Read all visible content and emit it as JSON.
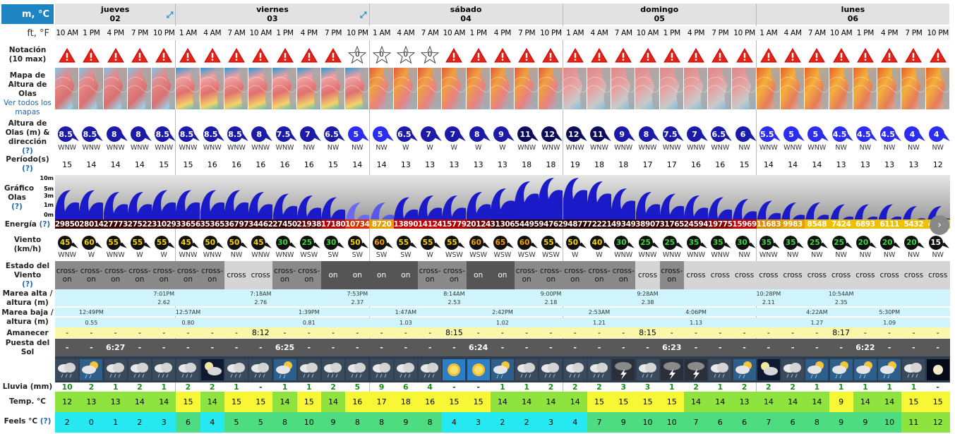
{
  "units": {
    "metric": "m, °C",
    "imperial": "ft, °F"
  },
  "labels": {
    "rating": "Notación (10 max)",
    "map_line1": "Mapa de Altura de Olas",
    "map_link": "Ver todos los mapas",
    "height": "Altura de Olas (m) & dirección",
    "help": "(?)",
    "period": "Período(s)",
    "graph": "Gráfico Olas",
    "graph_ticks": [
      "10m",
      "5m",
      "3m",
      "1m",
      "0m"
    ],
    "energy": "Energía",
    "wind": "Viento (km/h)",
    "wind_state": "Estado del Viento",
    "tide_high": "Marea alta / altura (m)",
    "tide_low": "Marea baja / altura (m)",
    "sunrise": "Amanecer",
    "sunset": "Puesta del Sol",
    "rain": "Lluvia (mm)",
    "temp": "Temp. °C",
    "feels": "Feels °C"
  },
  "days": [
    {
      "name": "jueves",
      "num": "02",
      "cols": 5
    },
    {
      "name": "viernes",
      "num": "03",
      "cols": 8
    },
    {
      "name": "sábado",
      "num": "04",
      "cols": 8
    },
    {
      "name": "domingo",
      "num": "05",
      "cols": 8
    },
    {
      "name": "lunes",
      "num": "06",
      "cols": 8
    }
  ],
  "hours": [
    "10 AM",
    "1 PM",
    "4 PM",
    "7 PM",
    "10 PM",
    "1 AM",
    "4 AM",
    "7 AM",
    "10 AM",
    "1 PM",
    "4 PM",
    "7 PM",
    "10 PM",
    "1 AM",
    "4 AM",
    "7 AM",
    "10 AM",
    "1 PM",
    "4 PM",
    "7 PM",
    "10 PM",
    "1 AM",
    "4 AM",
    "7 AM",
    "10 AM",
    "1 PM",
    "4 PM",
    "7 PM",
    "10 PM",
    "1 AM",
    "4 AM",
    "7 AM",
    "10 AM",
    "1 PM",
    "4 PM",
    "7 PM",
    "10 PM"
  ],
  "rating": [
    "w",
    "w",
    "w",
    "w",
    "w",
    "w",
    "w",
    "w",
    "w",
    "w",
    "w",
    "w",
    "0",
    "0",
    "0",
    "0",
    "w",
    "w",
    "w",
    "w",
    "w",
    "w",
    "w",
    "w",
    "w",
    "w",
    "w",
    "w",
    "w",
    "w",
    "w",
    "w",
    "w",
    "w",
    "w",
    "w",
    "w"
  ],
  "wave_height": [
    "8.5",
    "8.5",
    "8",
    "8",
    "8.5",
    "8.5",
    "8.5",
    "8.5",
    "8",
    "7.5",
    "7",
    "6.5",
    "5",
    "5",
    "6.5",
    "7",
    "7",
    "8",
    "9",
    "11",
    "12",
    "12",
    "11",
    "9",
    "8",
    "7.5",
    "7",
    "6.5",
    "6",
    "5.5",
    "5",
    "5",
    "4.5",
    "4.5",
    "4.5",
    "4",
    "4"
  ],
  "wave_dir": [
    "WNW",
    "WNW",
    "WNW",
    "WNW",
    "WNW",
    "WNW",
    "WNW",
    "WNW",
    "WNW",
    "WNW",
    "NW",
    "NW",
    "NW",
    "NW",
    "W",
    "W",
    "W",
    "W",
    "W",
    "WNW",
    "WNW",
    "WNW",
    "WNW",
    "WNW",
    "WNW",
    "WNW",
    "WNW",
    "WNW",
    "NW",
    "WNW",
    "WNW",
    "WNW",
    "NW",
    "NW",
    "NW",
    "NW",
    "NW"
  ],
  "period": [
    "15",
    "14",
    "14",
    "14",
    "15",
    "15",
    "16",
    "16",
    "16",
    "16",
    "16",
    "15",
    "14",
    "14",
    "13",
    "13",
    "13",
    "13",
    "13",
    "18",
    "18",
    "19",
    "18",
    "18",
    "17",
    "17",
    "16",
    "16",
    "15",
    "14",
    "14",
    "14",
    "13",
    "13",
    "13",
    "13",
    "12"
  ],
  "energy": [
    "29850",
    "28014",
    "27773",
    "27522",
    "31029",
    "33656",
    "35365",
    "36797",
    "34462",
    "27450",
    "21938",
    "17180",
    "10734",
    "8720",
    "13890",
    "14124",
    "15779",
    "20124",
    "31306",
    "54495",
    "94762",
    "94877",
    "72221",
    "49349",
    "38907",
    "31765",
    "24594",
    "19775",
    "15969",
    "11683",
    "9983",
    "8548",
    "7424",
    "6893",
    "6111",
    "5432",
    "4331"
  ],
  "energy_colors": [
    "#3a0000",
    "#3a0000",
    "#3a0000",
    "#3a0000",
    "#3a0000",
    "#3a0000",
    "#3a0000",
    "#3a0000",
    "#3a0000",
    "#3a0000",
    "#5a0000",
    "#b00000",
    "#d83000",
    "#e5a000",
    "#c40000",
    "#c40000",
    "#b00000",
    "#7a0000",
    "#3a0000",
    "#2a0000",
    "#2a0000",
    "#2a0000",
    "#2a0000",
    "#2a0000",
    "#3a0000",
    "#3a0000",
    "#5a0000",
    "#8a0000",
    "#c40000",
    "#e08a00",
    "#e5a000",
    "#edc000",
    "#edc000",
    "#edc000",
    "#edc000",
    "#edc000",
    "#edc000"
  ],
  "wind_speed": [
    "45",
    "60",
    "55",
    "55",
    "55",
    "45",
    "50",
    "50",
    "45",
    "30",
    "25",
    "30",
    "50",
    "60",
    "55",
    "55",
    "55",
    "60",
    "65",
    "60",
    "55",
    "50",
    "40",
    "30",
    "25",
    "25",
    "35",
    "35",
    "30",
    "35",
    "35",
    "25",
    "25",
    "20",
    "20",
    "20",
    "15"
  ],
  "wind_speed_colors": [
    "#f5d400",
    "#f5d400",
    "#f5d400",
    "#f5d400",
    "#f5d400",
    "#f5d400",
    "#f5d400",
    "#f5d400",
    "#f5d400",
    "#3ed23e",
    "#3ed23e",
    "#3ed23e",
    "#f5d400",
    "#f5a000",
    "#f5d400",
    "#f5d400",
    "#f5d400",
    "#f5a000",
    "#f5a000",
    "#f5a000",
    "#f5d400",
    "#f5d400",
    "#f5d400",
    "#3ed23e",
    "#3ed23e",
    "#3ed23e",
    "#3ed23e",
    "#3ed23e",
    "#3ed23e",
    "#3ed23e",
    "#3ed23e",
    "#3ed23e",
    "#3ed23e",
    "#3ed23e",
    "#3ed23e",
    "#3ed23e",
    "#ffffff"
  ],
  "wind_dir": [
    "WNW",
    "W",
    "WNW",
    "W",
    "W",
    "WNW",
    "WNW",
    "NW",
    "WNW",
    "WNW",
    "WSW",
    "SW",
    "SW",
    "SW",
    "SW",
    "W",
    "WSW",
    "WSW",
    "WSW",
    "WSW",
    "WSW",
    "W",
    "W",
    "WNW",
    "WNW",
    "WNW",
    "WNW",
    "WNW",
    "NW",
    "WNW",
    "NW",
    "NW",
    "NW",
    "NW",
    "NW",
    "NW",
    "NW"
  ],
  "wind_state": [
    "cross-on",
    "cross-on",
    "cross-on",
    "cross-on",
    "cross-on",
    "cross-on",
    "cross-on",
    "cross",
    "cross",
    "cross-on",
    "cross-on",
    "on",
    "on",
    "on",
    "on",
    "cross-on",
    "cross-on",
    "on",
    "on",
    "cross-on",
    "cross-on",
    "cross-on",
    "cross-on",
    "cross-on",
    "cross",
    "cross-on",
    "cross",
    "cross",
    "cross",
    "cross",
    "cross",
    "cross",
    "cross",
    "cross",
    "cross",
    "cross",
    "cross"
  ],
  "wind_state_colors": [
    "#8a8a8a",
    "#8a8a8a",
    "#8a8a8a",
    "#8a8a8a",
    "#8a8a8a",
    "#8a8a8a",
    "#8a8a8a",
    "#d5d5d5",
    "#d5d5d5",
    "#8a8a8a",
    "#8a8a8a",
    "#555555",
    "#555555",
    "#555555",
    "#555555",
    "#8a8a8a",
    "#8a8a8a",
    "#555555",
    "#555555",
    "#8a8a8a",
    "#8a8a8a",
    "#8a8a8a",
    "#8a8a8a",
    "#8a8a8a",
    "#d5d5d5",
    "#8a8a8a",
    "#d5d5d5",
    "#d5d5d5",
    "#d5d5d5",
    "#d5d5d5",
    "#d5d5d5",
    "#d5d5d5",
    "#d5d5d5",
    "#d5d5d5",
    "#d5d5d5",
    "#d5d5d5",
    "#d5d5d5"
  ],
  "tide_high_time": [
    "",
    "",
    "",
    "",
    "7:01PM",
    "",
    "",
    "",
    "7:18AM",
    "",
    "",
    "",
    "7:53PM",
    "",
    "",
    "",
    "8:14AM",
    "",
    "",
    "",
    "9:00PM",
    "",
    "",
    "",
    "9:28AM",
    "",
    "",
    "",
    "",
    "10:28PM",
    "",
    "",
    "10:54AM",
    "",
    "",
    "",
    ""
  ],
  "tide_high_h": [
    "",
    "",
    "",
    "",
    "2.62",
    "",
    "",
    "",
    "2.76",
    "",
    "",
    "",
    "2.37",
    "",
    "",
    "",
    "2.53",
    "",
    "",
    "",
    "2.18",
    "",
    "",
    "",
    "2.38",
    "",
    "",
    "",
    "",
    "2.11",
    "",
    "",
    "2.35",
    "",
    "",
    "",
    ""
  ],
  "tide_low_time": [
    "",
    "12:49PM",
    "",
    "",
    "",
    "12:57AM",
    "",
    "",
    "",
    "",
    "1:39PM",
    "",
    "",
    "",
    "1:47AM",
    "",
    "",
    "",
    "2:42PM",
    "",
    "",
    "",
    "2:53AM",
    "",
    "",
    "",
    "4:06PM",
    "",
    "",
    "",
    "",
    "4:22AM",
    "",
    "",
    "5:30PM",
    "",
    ""
  ],
  "tide_low_h": [
    "",
    "0.55",
    "",
    "",
    "",
    "0.80",
    "",
    "",
    "",
    "",
    "0.81",
    "",
    "",
    "",
    "1.03",
    "",
    "",
    "",
    "1.02",
    "",
    "",
    "",
    "1.21",
    "",
    "",
    "",
    "1.13",
    "",
    "",
    "",
    "",
    "1.27",
    "",
    "",
    "1.09",
    "",
    ""
  ],
  "sunrise": [
    "-",
    "-",
    "-",
    "-",
    "-",
    "-",
    "-",
    "-",
    "8:12",
    "-",
    "-",
    "-",
    "-",
    "-",
    "-",
    "-",
    "8:15",
    "-",
    "-",
    "-",
    "-",
    "-",
    "-",
    "-",
    "8:15",
    "-",
    "-",
    "-",
    "-",
    "-",
    "-",
    "-",
    "8:17",
    "-",
    "-",
    "-",
    "-"
  ],
  "sunset": [
    "-",
    "-",
    "6:27",
    "-",
    "-",
    "-",
    "-",
    "-",
    "-",
    "6:25",
    "-",
    "-",
    "-",
    "-",
    "-",
    "-",
    "-",
    "6:24",
    "-",
    "-",
    "-",
    "-",
    "-",
    "-",
    "-",
    "6:23",
    "-",
    "-",
    "-",
    "-",
    "-",
    "-",
    "-",
    "6:22",
    "-",
    "-",
    "-"
  ],
  "weather": [
    "rain",
    "partly-rain",
    "rain",
    "rain",
    "rain",
    "rain",
    "moon-cloud",
    "rain",
    "rain",
    "partly-rain",
    "rain",
    "rain",
    "rain",
    "rain",
    "rain",
    "rain",
    "sun",
    "sun",
    "partly-rain",
    "rain",
    "rain",
    "rain",
    "rain",
    "storm",
    "rain",
    "storm",
    "storm",
    "rain",
    "partly-rain",
    "moon-cloud",
    "rain",
    "partly-rain",
    "partly-rain",
    "partly-rain",
    "partly-rain",
    "rain",
    "moon"
  ],
  "rain": [
    "10",
    "2",
    "1",
    "2",
    "1",
    "2",
    "2",
    "1",
    "-",
    "1",
    "1",
    "2",
    "5",
    "9",
    "6",
    "4",
    "-",
    "-",
    "1",
    "1",
    "2",
    "2",
    "2",
    "3",
    "3",
    "1",
    "2",
    "1",
    "2",
    "2",
    "2",
    "1",
    "1",
    "1",
    "1",
    "1",
    "-"
  ],
  "temp": [
    "12",
    "13",
    "13",
    "14",
    "14",
    "15",
    "14",
    "15",
    "15",
    "14",
    "15",
    "14",
    "16",
    "17",
    "18",
    "16",
    "15",
    "15",
    "14",
    "14",
    "14",
    "14",
    "15",
    "15",
    "15",
    "15",
    "14",
    "14",
    "13",
    "14",
    "14",
    "14",
    "9",
    "14",
    "14",
    "15",
    "15"
  ],
  "temp_colors": [
    "#8ee33e",
    "#8ee33e",
    "#8ee33e",
    "#8ee33e",
    "#8ee33e",
    "#f7f736",
    "#8ee33e",
    "#f7f736",
    "#f7f736",
    "#8ee33e",
    "#f7f736",
    "#8ee33e",
    "#f7f736",
    "#f7f736",
    "#f7f736",
    "#f7f736",
    "#f7f736",
    "#f7f736",
    "#8ee33e",
    "#8ee33e",
    "#8ee33e",
    "#8ee33e",
    "#f7f736",
    "#f7f736",
    "#f7f736",
    "#f7f736",
    "#8ee33e",
    "#8ee33e",
    "#8ee33e",
    "#8ee33e",
    "#8ee33e",
    "#8ee33e",
    "#f7f736",
    "#8ee33e",
    "#8ee33e",
    "#f7f736",
    "#f7f736"
  ],
  "feels": [
    "2",
    "0",
    "1",
    "2",
    "3",
    "6",
    "4",
    "5",
    "5",
    "8",
    "10",
    "9",
    "8",
    "8",
    "9",
    "8",
    "4",
    "3",
    "2",
    "2",
    "3",
    "4",
    "7",
    "9",
    "10",
    "10",
    "7",
    "6",
    "6",
    "7",
    "6",
    "8",
    "9",
    "9",
    "10",
    "11",
    "12"
  ],
  "feels_colors": [
    "#25e8f0",
    "#25e8f0",
    "#25e8f0",
    "#25e8f0",
    "#25e8f0",
    "#4ddc80",
    "#25e8f0",
    "#4ddc80",
    "#4ddc80",
    "#4ddc80",
    "#4ddc80",
    "#4ddc80",
    "#4ddc80",
    "#4ddc80",
    "#4ddc80",
    "#4ddc80",
    "#25e8f0",
    "#25e8f0",
    "#25e8f0",
    "#25e8f0",
    "#25e8f0",
    "#25e8f0",
    "#4ddc80",
    "#4ddc80",
    "#4ddc80",
    "#4ddc80",
    "#4ddc80",
    "#4ddc80",
    "#4ddc80",
    "#4ddc80",
    "#4ddc80",
    "#4ddc80",
    "#4ddc80",
    "#4ddc80",
    "#4ddc80",
    "#8ee33e",
    "#8ee33e"
  ]
}
